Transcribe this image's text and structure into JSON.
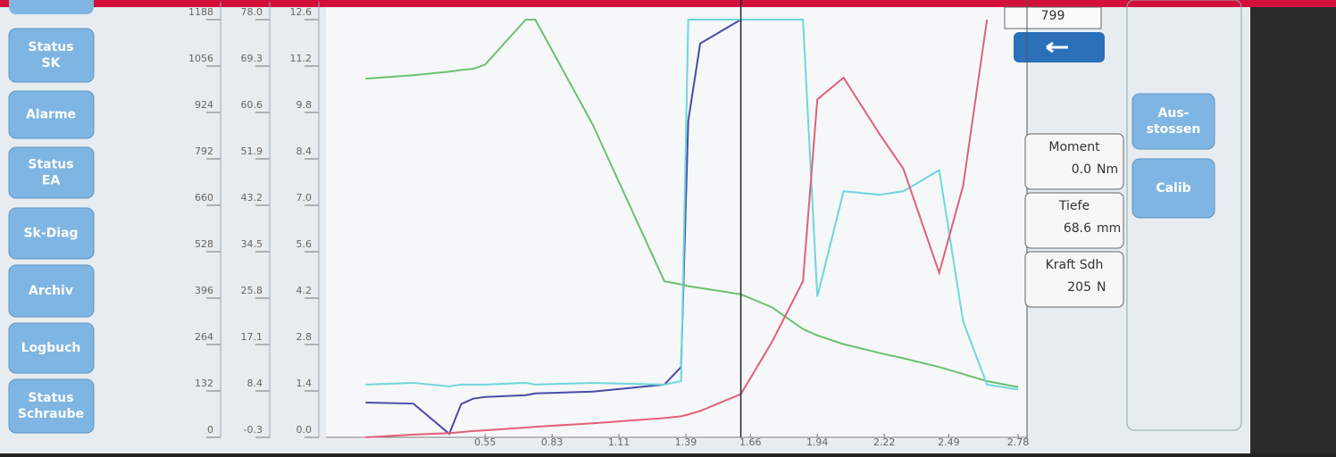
{
  "sidebar": {
    "buttons": [
      [
        "Status",
        "SK"
      ],
      [
        "Alarme"
      ],
      [
        "Status",
        "EA"
      ],
      [
        "Sk-Diag"
      ],
      [
        "Archiv"
      ],
      [
        "Logbuch"
      ],
      [
        "Status",
        "Schraube"
      ]
    ]
  },
  "chart_data": {
    "type": "line",
    "x": [
      0.05,
      0.25,
      0.4,
      0.45,
      0.5,
      0.55,
      0.72,
      0.76,
      1.0,
      1.3,
      1.37,
      1.4,
      1.45,
      1.62,
      1.75,
      1.88,
      1.94,
      2.05,
      2.2,
      2.3,
      2.45,
      2.55,
      2.65,
      2.78
    ],
    "series": [
      {
        "color": "#6cc070",
        "values": [
          1020,
          1030,
          1040,
          1045,
          1048,
          1060,
          1188,
          1188,
          890,
          444,
          435,
          430,
          425,
          407,
          370,
          308,
          290,
          265,
          240,
          225,
          200,
          180,
          160,
          143
        ]
      },
      {
        "color": "#4a4aa8",
        "values": [
          99,
          96,
          10,
          95,
          110,
          115,
          120,
          125,
          130,
          150,
          200,
          900,
          1120,
          1188,
          null,
          null,
          null,
          null,
          null,
          null,
          null,
          null,
          null,
          null
        ]
      },
      {
        "color": "#6fd6dc",
        "values": [
          150,
          155,
          145,
          150,
          150,
          150,
          155,
          150,
          155,
          150,
          160,
          1188,
          1188,
          1188,
          1188,
          1188,
          400,
          700,
          690,
          700,
          760,
          330,
          150,
          136
        ]
      },
      {
        "color": "#e0607a",
        "values": [
          0,
          8,
          12,
          15,
          18,
          20,
          28,
          30,
          40,
          55,
          60,
          65,
          75,
          123,
          271,
          444,
          961,
          1023,
          863,
          764,
          468,
          715,
          1188,
          null
        ]
      }
    ],
    "xlim": [
      0,
      2.78
    ],
    "xticks": [
      0.55,
      0.83,
      1.11,
      1.39,
      1.66,
      1.94,
      2.22,
      2.49,
      2.78
    ],
    "ylim": [
      0,
      1188
    ],
    "yticks": [
      0,
      132,
      264,
      396,
      528,
      660,
      792,
      924,
      1056,
      1188
    ],
    "y2lim": [
      -0.3,
      78.0
    ],
    "y2ticks": [
      -0.3,
      8.4,
      17.1,
      25.8,
      34.5,
      43.2,
      51.9,
      60.6,
      69.3,
      {
        "value": 78,
        "label": "78.0"
      }
    ],
    "y3lim": [
      0,
      12.6
    ],
    "y3ticks": [
      {
        "value": 0,
        "label": "0.0"
      },
      1.4,
      2.8,
      4.2,
      5.6,
      {
        "value": 7,
        "label": "7.0"
      },
      8.4,
      9.8,
      11.2,
      12.6
    ],
    "cursor": 1.62
  },
  "counter": "799",
  "readouts": [
    {
      "label": "Moment",
      "value": "0.0",
      "unit": "Nm"
    },
    {
      "label": "Tiefe",
      "value": "68.6",
      "unit": "mm"
    },
    {
      "label": "Kraft Sdh",
      "value": "205",
      "unit": "N"
    }
  ],
  "actions": [
    [
      "Aus-",
      "stossen"
    ],
    [
      "Calib"
    ]
  ]
}
